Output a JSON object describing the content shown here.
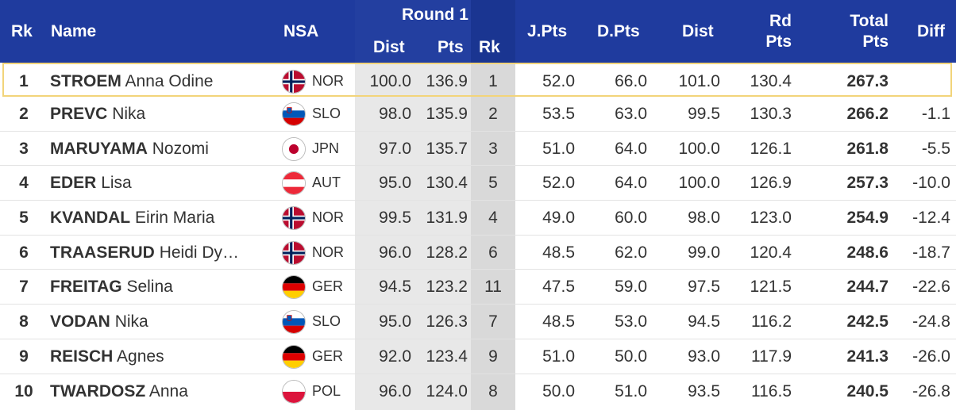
{
  "header": {
    "rk": "Rk",
    "name": "Name",
    "nsa": "NSA",
    "round1": "Round 1",
    "r1_dist": "Dist",
    "r1_pts": "Pts",
    "r1_rk": "Rk",
    "jpts": "J.Pts",
    "dpts": "D.Pts",
    "dist": "Dist",
    "rdpts_line1": "Rd",
    "rdpts_line2": "Pts",
    "total_line1": "Total",
    "total_line2": "Pts",
    "diff": "Diff"
  },
  "rows": [
    {
      "rk": "1",
      "last": "STROEM",
      "first": "Anna Odine",
      "nsa": "NOR",
      "flag": "norway-flag-icon",
      "r1_dist": "100.0",
      "r1_pts": "136.9",
      "r1_rk": "1",
      "jpts": "52.0",
      "dpts": "66.0",
      "dist": "101.0",
      "rdpts": "130.4",
      "total": "267.3",
      "diff": ""
    },
    {
      "rk": "2",
      "last": "PREVC",
      "first": "Nika",
      "nsa": "SLO",
      "flag": "slovenia-flag-icon",
      "r1_dist": "98.0",
      "r1_pts": "135.9",
      "r1_rk": "2",
      "jpts": "53.5",
      "dpts": "63.0",
      "dist": "99.5",
      "rdpts": "130.3",
      "total": "266.2",
      "diff": "-1.1"
    },
    {
      "rk": "3",
      "last": "MARUYAMA",
      "first": "Nozomi",
      "nsa": "JPN",
      "flag": "japan-flag-icon",
      "r1_dist": "97.0",
      "r1_pts": "135.7",
      "r1_rk": "3",
      "jpts": "51.0",
      "dpts": "64.0",
      "dist": "100.0",
      "rdpts": "126.1",
      "total": "261.8",
      "diff": "-5.5"
    },
    {
      "rk": "4",
      "last": "EDER",
      "first": "Lisa",
      "nsa": "AUT",
      "flag": "austria-flag-icon",
      "r1_dist": "95.0",
      "r1_pts": "130.4",
      "r1_rk": "5",
      "jpts": "52.0",
      "dpts": "64.0",
      "dist": "100.0",
      "rdpts": "126.9",
      "total": "257.3",
      "diff": "-10.0"
    },
    {
      "rk": "5",
      "last": "KVANDAL",
      "first": "Eirin Maria",
      "nsa": "NOR",
      "flag": "norway-flag-icon",
      "r1_dist": "99.5",
      "r1_pts": "131.9",
      "r1_rk": "4",
      "jpts": "49.0",
      "dpts": "60.0",
      "dist": "98.0",
      "rdpts": "123.0",
      "total": "254.9",
      "diff": "-12.4"
    },
    {
      "rk": "6",
      "last": "TRAASERUD",
      "first": "Heidi Dy…",
      "nsa": "NOR",
      "flag": "norway-flag-icon",
      "r1_dist": "96.0",
      "r1_pts": "128.2",
      "r1_rk": "6",
      "jpts": "48.5",
      "dpts": "62.0",
      "dist": "99.0",
      "rdpts": "120.4",
      "total": "248.6",
      "diff": "-18.7"
    },
    {
      "rk": "7",
      "last": "FREITAG",
      "first": "Selina",
      "nsa": "GER",
      "flag": "germany-flag-icon",
      "r1_dist": "94.5",
      "r1_pts": "123.2",
      "r1_rk": "11",
      "jpts": "47.5",
      "dpts": "59.0",
      "dist": "97.5",
      "rdpts": "121.5",
      "total": "244.7",
      "diff": "-22.6"
    },
    {
      "rk": "8",
      "last": "VODAN",
      "first": "Nika",
      "nsa": "SLO",
      "flag": "slovenia-flag-icon",
      "r1_dist": "95.0",
      "r1_pts": "126.3",
      "r1_rk": "7",
      "jpts": "48.5",
      "dpts": "53.0",
      "dist": "94.5",
      "rdpts": "116.2",
      "total": "242.5",
      "diff": "-24.8"
    },
    {
      "rk": "9",
      "last": "REISCH",
      "first": "Agnes",
      "nsa": "GER",
      "flag": "germany-flag-icon",
      "r1_dist": "92.0",
      "r1_pts": "123.4",
      "r1_rk": "9",
      "jpts": "51.0",
      "dpts": "50.0",
      "dist": "93.0",
      "rdpts": "117.9",
      "total": "241.3",
      "diff": "-26.0"
    },
    {
      "rk": "10",
      "last": "TWARDOSZ",
      "first": "Anna",
      "nsa": "POL",
      "flag": "poland-flag-icon",
      "r1_dist": "96.0",
      "r1_pts": "124.0",
      "r1_rk": "8",
      "jpts": "50.0",
      "dpts": "51.0",
      "dist": "93.5",
      "rdpts": "116.5",
      "total": "240.5",
      "diff": "-26.8"
    }
  ],
  "colors": {
    "header_bg": "#1f3b9e",
    "header_text": "#ffffff",
    "highlight_border": "#f2d47a",
    "round1_shade": "#e8e8e8",
    "round1_rank_shade": "#d9d9d9"
  }
}
